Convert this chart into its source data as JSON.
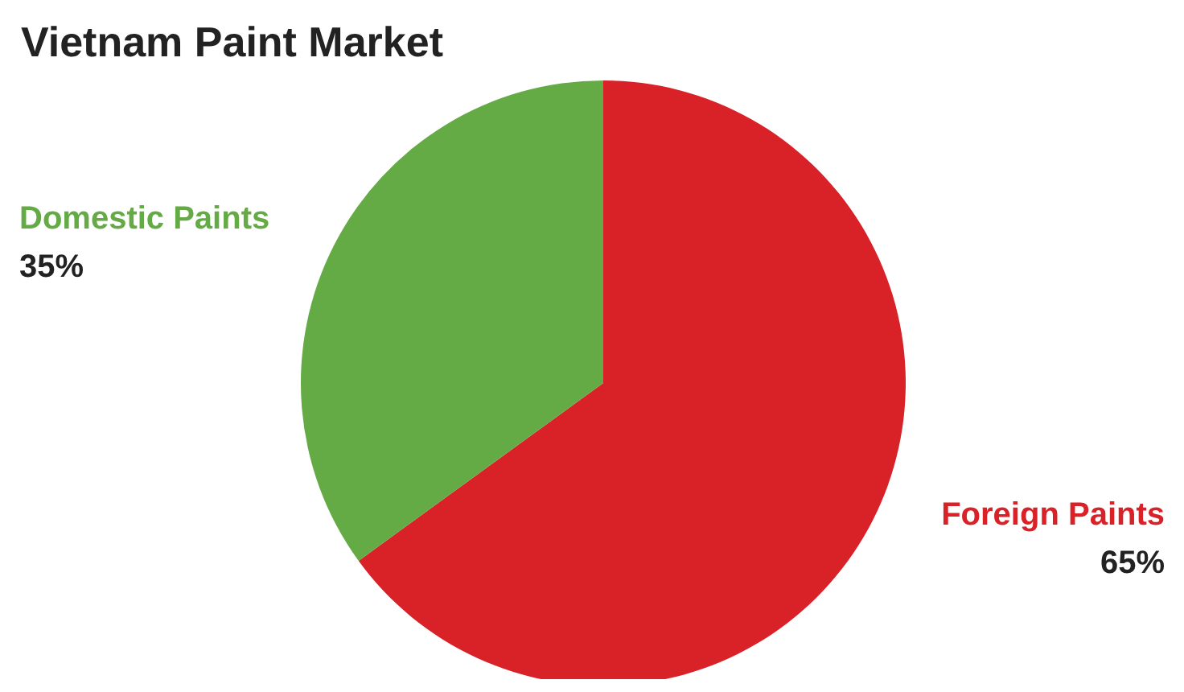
{
  "chart_data": {
    "type": "pie",
    "title": "Vietnam Paint Market",
    "categories": [
      "Foreign Paints",
      "Domestic Paints"
    ],
    "values": [
      65,
      35
    ],
    "colors": [
      "#d92128",
      "#64ab46"
    ],
    "value_labels": [
      "65%",
      "35%"
    ],
    "legend": false
  }
}
